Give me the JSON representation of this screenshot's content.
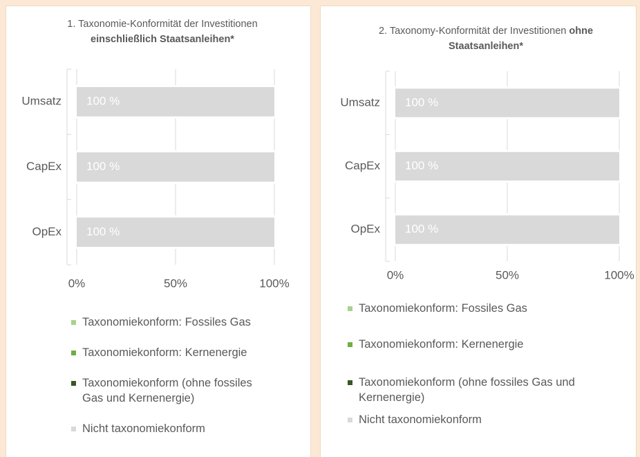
{
  "chart_data": [
    {
      "type": "bar",
      "orientation": "horizontal",
      "stacked": true,
      "title": "1. Taxonomie-Konformität der Investitionen",
      "title_emphasis": "einschließlich Staatsanleihen*",
      "categories": [
        "Umsatz",
        "CapEx",
        "OpEx"
      ],
      "series": [
        {
          "name": "Taxonomiekonform: Fossiles Gas",
          "color": "#a9d18e",
          "values": [
            0,
            0,
            0
          ]
        },
        {
          "name": "Taxonomiekonform: Kernenergie",
          "color": "#70ad47",
          "values": [
            0,
            0,
            0
          ]
        },
        {
          "name": "Taxonomiekonform (ohne fossiles Gas und Kernenergie)",
          "color": "#385723",
          "values": [
            0,
            0,
            0
          ]
        },
        {
          "name": "Nicht taxonomiekonform",
          "color": "#d9d9d9",
          "values": [
            100,
            100,
            100
          ],
          "value_labels": [
            "100 %",
            "100 %",
            "100 %"
          ]
        }
      ],
      "xlim": [
        0,
        100
      ],
      "xticks": [
        {
          "value": 0,
          "label": "0%"
        },
        {
          "value": 50,
          "label": "50%"
        },
        {
          "value": 100,
          "label": "100%"
        }
      ],
      "grid": true,
      "legend": "bottom"
    },
    {
      "type": "bar",
      "orientation": "horizontal",
      "stacked": true,
      "title": "2. Taxonomy-Konformität der Investitionen",
      "title_emphasis": "ohne Staatsanleihen*",
      "categories": [
        "Umsatz",
        "CapEx",
        "OpEx"
      ],
      "series": [
        {
          "name": "Taxonomiekonform: Fossiles Gas",
          "color": "#a9d18e",
          "values": [
            0,
            0,
            0
          ]
        },
        {
          "name": "Taxonomiekonform: Kernenergie",
          "color": "#70ad47",
          "values": [
            0,
            0,
            0
          ]
        },
        {
          "name": "Taxonomiekonform (ohne fossiles Gas und Kernenergie)",
          "color": "#385723",
          "values": [
            0,
            0,
            0
          ]
        },
        {
          "name": "Nicht taxonomiekonform",
          "color": "#d9d9d9",
          "values": [
            100,
            100,
            100
          ],
          "value_labels": [
            "100 %",
            "100 %",
            "100 %"
          ]
        }
      ],
      "xlim": [
        0,
        100
      ],
      "xticks": [
        {
          "value": 0,
          "label": "0%"
        },
        {
          "value": 50,
          "label": "50%"
        },
        {
          "value": 100,
          "label": "100%"
        }
      ],
      "grid": true,
      "legend": "bottom"
    }
  ]
}
